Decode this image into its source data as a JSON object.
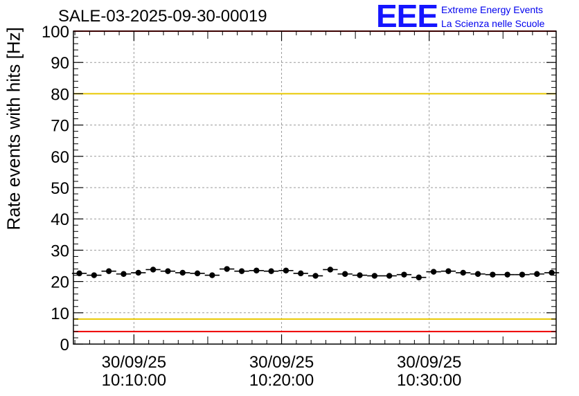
{
  "header": {
    "title": "SALE-03-2025-09-30-00019",
    "logo_mark": "EEE",
    "logo_line1": "Extreme Energy Events",
    "logo_line2": "La Scienza nelle Scuole"
  },
  "chart_data": {
    "type": "scatter",
    "title": "SALE-03-2025-09-30-00019",
    "xlabel": "",
    "ylabel": "Rate events with hits [Hz]",
    "ylim": [
      0,
      100
    ],
    "xlim_minutes": [
      -4.1,
      28.6
    ],
    "yticks": [
      0,
      10,
      20,
      30,
      40,
      50,
      60,
      70,
      80,
      90,
      100
    ],
    "xticks": [
      {
        "minute": 0,
        "date": "30/09/25",
        "time": "10:10:00"
      },
      {
        "minute": 10,
        "date": "30/09/25",
        "time": "10:20:00"
      },
      {
        "minute": 20,
        "date": "30/09/25",
        "time": "10:30:00"
      }
    ],
    "grid": true,
    "reference_lines": [
      {
        "value": 100,
        "color": "#ee0000"
      },
      {
        "value": 80,
        "color": "#e8c800"
      },
      {
        "value": 8,
        "color": "#e8c800"
      },
      {
        "value": 4,
        "color": "#ee0000"
      }
    ],
    "series": [
      {
        "name": "rate",
        "color": "#000000",
        "x_minutes": [
          -3.7,
          -2.7,
          -1.7,
          -0.7,
          0.3,
          1.3,
          2.3,
          3.3,
          4.3,
          5.3,
          6.3,
          7.3,
          8.3,
          9.3,
          10.3,
          11.3,
          12.3,
          13.3,
          14.3,
          15.3,
          16.3,
          17.3,
          18.3,
          19.3,
          20.3,
          21.3,
          22.3,
          23.3,
          24.3,
          25.3,
          26.3,
          27.3,
          28.3
        ],
        "values": [
          22.6,
          22.0,
          23.3,
          22.4,
          22.8,
          23.8,
          23.3,
          22.8,
          22.6,
          22.0,
          24.0,
          23.3,
          23.5,
          23.3,
          23.5,
          22.6,
          21.8,
          23.8,
          22.4,
          22.0,
          21.8,
          21.8,
          22.2,
          21.3,
          23.1,
          23.3,
          22.8,
          22.4,
          22.2,
          22.2,
          22.2,
          22.4,
          22.8
        ]
      }
    ]
  }
}
